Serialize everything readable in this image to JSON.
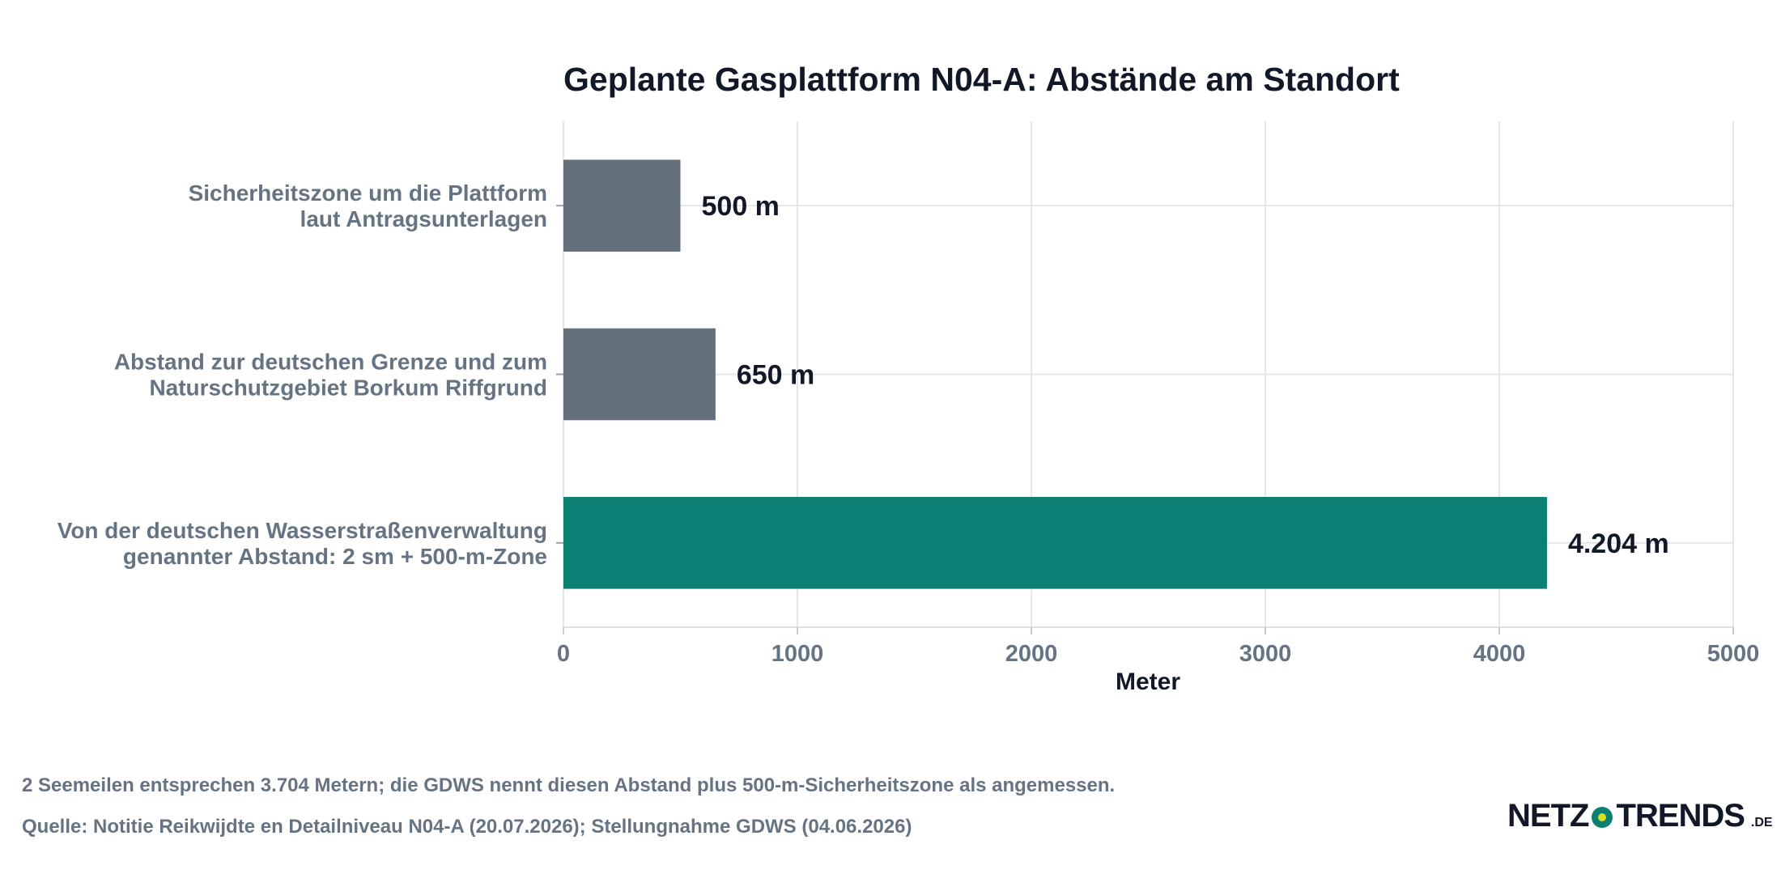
{
  "chart_data": {
    "type": "bar",
    "orientation": "horizontal",
    "title": "Geplante Gasplattform N04-A: Abstände am Standort",
    "xlabel": "Meter",
    "ylabel": "",
    "xlim": [
      0,
      5000
    ],
    "xticks": [
      "0",
      "1000",
      "2000",
      "3000",
      "4000",
      "5000"
    ],
    "grid": true,
    "categories": [
      [
        "Sicherheitszone um die Plattform",
        "laut Antragsunterlagen"
      ],
      [
        "Abstand zur deutschen Grenze und zum",
        "Naturschutzgebiet Borkum Riffgrund"
      ],
      [
        "Von der deutschen Wasserstraßenverwaltung",
        "genannter Abstand: 2 sm + 500-m-Zone"
      ]
    ],
    "values": [
      500,
      650,
      4204
    ],
    "value_labels": [
      "500 m",
      "650 m",
      "4.204 m"
    ],
    "colors": [
      "#65707d",
      "#65707d",
      "#0b8073"
    ]
  },
  "footer": {
    "note": "2 Seemeilen entsprechen 3.704 Metern; die GDWS nennt diesen Abstand plus 500-m-Sicherheitszone als angemessen.",
    "source": "Quelle: Notitie Reikwijdte en Detailniveau N04-A (20.07.2026); Stellungnahme GDWS (04.06.2026)"
  },
  "logo": {
    "left": "NETZ",
    "right": "TRENDS",
    "tld": ".DE"
  }
}
